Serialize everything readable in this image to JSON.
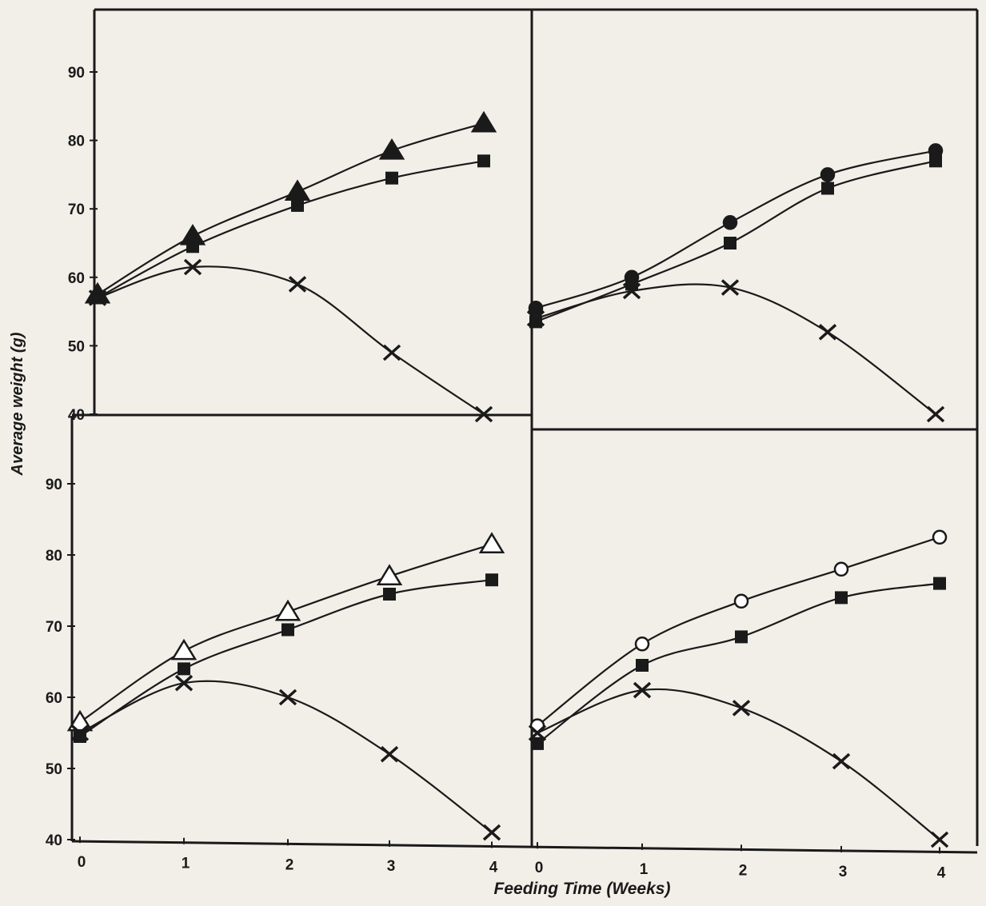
{
  "chart_data": {
    "type": "line",
    "ylabel": "Average weight (g)",
    "xlabel": "Feeding Time (Weeks)",
    "x": [
      0,
      1,
      2,
      3,
      4
    ],
    "xticks": [
      "0",
      "1",
      "2",
      "3",
      "4"
    ],
    "ylim": [
      40,
      90
    ],
    "yticks": [
      "40",
      "50",
      "60",
      "70",
      "80",
      "90"
    ],
    "grid": false,
    "panels": [
      {
        "position": "top-left",
        "series": [
          {
            "marker": "filled-triangle",
            "values": [
              57.5,
              66,
              72.5,
              78.5,
              82.5
            ]
          },
          {
            "marker": "filled-square",
            "values": [
              57,
              64.5,
              70.5,
              74.5,
              77
            ]
          },
          {
            "marker": "cross",
            "values": [
              57,
              61.5,
              59,
              49,
              40
            ]
          }
        ]
      },
      {
        "position": "top-right",
        "series": [
          {
            "marker": "filled-circle",
            "values": [
              55.5,
              60,
              68,
              75,
              78.5
            ]
          },
          {
            "marker": "filled-square",
            "values": [
              53.5,
              59,
              65,
              73,
              77
            ]
          },
          {
            "marker": "cross",
            "values": [
              54,
              58,
              58.5,
              52,
              40
            ]
          }
        ]
      },
      {
        "position": "bottom-left",
        "series": [
          {
            "marker": "open-triangle",
            "values": [
              56.5,
              66.5,
              72,
              77,
              81.5
            ]
          },
          {
            "marker": "filled-square",
            "values": [
              54.5,
              64,
              69.5,
              74.5,
              76.5
            ]
          },
          {
            "marker": "cross",
            "values": [
              55,
              62,
              60,
              52,
              41
            ]
          }
        ]
      },
      {
        "position": "bottom-right",
        "series": [
          {
            "marker": "open-circle",
            "values": [
              56,
              67.5,
              73.5,
              78,
              82.5
            ]
          },
          {
            "marker": "filled-square",
            "values": [
              53.5,
              64.5,
              68.5,
              74,
              76
            ]
          },
          {
            "marker": "cross",
            "values": [
              55,
              61,
              58.5,
              51,
              40
            ]
          }
        ]
      }
    ]
  }
}
